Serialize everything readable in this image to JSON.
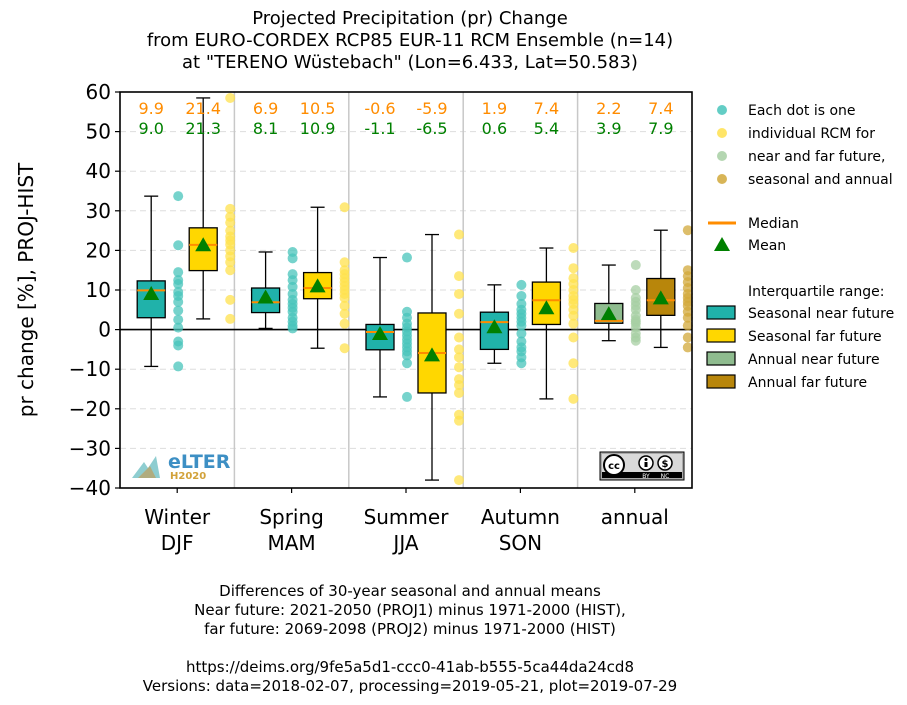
{
  "title": {
    "line1": "Projected Precipitation (pr) Change",
    "line2": "from EURO-CORDEX RCP85 EUR-11 RCM Ensemble (n=14)",
    "line3": "at \"TERENO Wüstebach\" (Lon=6.433, Lat=50.583)"
  },
  "caption": {
    "line1": "Differences of 30-year seasonal and annual means",
    "line2": "Near future: 2021-2050 (PROJ1) minus 1971-2000 (HIST),",
    "line3": "far future: 2069-2098 (PROJ2) minus 1971-2000 (HIST)",
    "line4": "https://deims.org/9fe5a5d1-ccc0-41ab-b555-5ca44da24cd8",
    "line5": "Versions: data=2018-02-07, processing=2019-05-21, plot=2019-07-29"
  },
  "logo": {
    "text": "eLTER",
    "subtext": "H2020"
  },
  "license_badge": {
    "text": [
      "cc",
      "BY",
      "NC"
    ]
  },
  "colors": {
    "seasonal_near": "#20b2aa",
    "seasonal_far": "#ffd700",
    "annual_near": "#8fbc8f",
    "annual_far": "#b8860b",
    "median": "#ff8c00",
    "mean": "#008000",
    "near_label": "#ff8c00",
    "far_label": "#008000",
    "dot_near": "#48c4bb",
    "dot_far": "#ffe14d",
    "dot_annual_near": "#a7cfa3",
    "dot_annual_far": "#d1a83a"
  },
  "chart_data": {
    "type": "box",
    "ylabel": "pr change [%], PROJ-HIST",
    "ylim": [
      -40,
      60
    ],
    "yticks": [
      -40,
      -30,
      -20,
      -10,
      0,
      10,
      20,
      30,
      40,
      50,
      60
    ],
    "ytick_labels": [
      "−40",
      "−30",
      "−20",
      "−10",
      "0",
      "10",
      "20",
      "30",
      "40",
      "50",
      "60"
    ],
    "grid": true,
    "categories": [
      {
        "line1": "Winter",
        "line2": "DJF"
      },
      {
        "line1": "Spring",
        "line2": "MAM"
      },
      {
        "line1": "Summer",
        "line2": "JJA"
      },
      {
        "line1": "Autumn",
        "line2": "SON"
      },
      {
        "line1": "annual",
        "line2": ""
      }
    ],
    "top_labels_row1": [
      "9.9",
      "21.4",
      "6.9",
      "10.5",
      "-0.6",
      "-5.9",
      "1.9",
      "7.4",
      "2.2",
      "7.4"
    ],
    "top_labels_row2": [
      "9.0",
      "21.3",
      "8.1",
      "10.9",
      "-1.1",
      "-6.5",
      "0.6",
      "5.4",
      "3.9",
      "7.9"
    ],
    "boxes": [
      {
        "category": 0,
        "period": "near",
        "kind": "seasonal",
        "whislo": -9.3,
        "q1": 3.0,
        "med": 9.9,
        "q3": 12.3,
        "whishi": 33.7,
        "mean": 9.0,
        "dots": [
          33.7,
          21.3,
          14.5,
          12.5,
          11.5,
          9.5,
          8.5,
          7.0,
          4.8,
          2.5,
          0.5,
          -3.0,
          -4.0,
          -9.3
        ]
      },
      {
        "category": 0,
        "period": "far",
        "kind": "seasonal",
        "whislo": 2.7,
        "q1": 14.9,
        "med": 21.4,
        "q3": 25.7,
        "whishi": 58.5,
        "mean": 21.3,
        "dots": [
          58.5,
          30.5,
          28.5,
          27.0,
          25.0,
          23.5,
          22.5,
          21.5,
          20.0,
          18.5,
          17.0,
          15.0,
          7.5,
          2.7
        ]
      },
      {
        "category": 1,
        "period": "near",
        "kind": "seasonal",
        "whislo": 0.3,
        "q1": 4.3,
        "med": 6.9,
        "q3": 10.5,
        "whishi": 19.6,
        "mean": 8.1,
        "dots": [
          19.6,
          18.0,
          14.0,
          12.5,
          10.8,
          9.0,
          7.5,
          6.5,
          5.5,
          4.5,
          3.0,
          2.0,
          1.0,
          0.3
        ]
      },
      {
        "category": 1,
        "period": "far",
        "kind": "seasonal",
        "whislo": -4.7,
        "q1": 7.8,
        "med": 10.5,
        "q3": 14.4,
        "whishi": 30.9,
        "mean": 10.9,
        "dots": [
          30.9,
          17.0,
          15.0,
          14.0,
          13.0,
          12.0,
          11.0,
          10.0,
          9.0,
          8.0,
          6.0,
          4.0,
          1.5,
          -4.7
        ]
      },
      {
        "category": 2,
        "period": "near",
        "kind": "seasonal",
        "whislo": -17.0,
        "q1": -5.1,
        "med": -0.6,
        "q3": 1.3,
        "whishi": 18.2,
        "mean": -1.1,
        "dots": [
          18.2,
          4.5,
          3.0,
          1.5,
          0.5,
          -0.5,
          -1.5,
          -2.5,
          -3.5,
          -4.5,
          -5.5,
          -6.5,
          -8.5,
          -17.0
        ]
      },
      {
        "category": 2,
        "period": "far",
        "kind": "seasonal",
        "whislo": -38.0,
        "q1": -16.0,
        "med": -5.9,
        "q3": 4.2,
        "whishi": 24.0,
        "mean": -6.5,
        "dots": [
          24.0,
          13.5,
          9.0,
          4.0,
          -2.0,
          -5.0,
          -7.0,
          -9.5,
          -12.5,
          -14.0,
          -16.0,
          -21.5,
          -23.0,
          -38.0
        ]
      },
      {
        "category": 3,
        "period": "near",
        "kind": "seasonal",
        "whislo": -8.5,
        "q1": -5.0,
        "med": 1.9,
        "q3": 4.4,
        "whishi": 11.3,
        "mean": 0.6,
        "dots": [
          11.3,
          8.5,
          6.5,
          5.0,
          4.0,
          3.0,
          2.0,
          1.0,
          -1.0,
          -3.0,
          -4.5,
          -5.5,
          -7.0,
          -8.5
        ]
      },
      {
        "category": 3,
        "period": "far",
        "kind": "seasonal",
        "whislo": -17.5,
        "q1": 1.3,
        "med": 7.4,
        "q3": 12.0,
        "whishi": 20.6,
        "mean": 5.4,
        "dots": [
          20.6,
          15.5,
          13.0,
          11.5,
          10.0,
          8.5,
          7.5,
          6.5,
          5.0,
          3.5,
          1.5,
          -2.0,
          -8.5,
          -17.5
        ]
      },
      {
        "category": 4,
        "period": "near",
        "kind": "annual",
        "whislo": -2.8,
        "q1": 1.6,
        "med": 2.2,
        "q3": 6.6,
        "whishi": 16.3,
        "mean": 3.9,
        "dots": [
          16.3,
          10.0,
          8.0,
          7.0,
          6.0,
          5.0,
          3.5,
          2.5,
          2.0,
          1.5,
          0.5,
          -1.0,
          -2.0,
          -2.8
        ]
      },
      {
        "category": 4,
        "period": "far",
        "kind": "annual",
        "whislo": -4.5,
        "q1": 3.6,
        "med": 7.4,
        "q3": 12.9,
        "whishi": 25.1,
        "mean": 7.9,
        "dots": [
          25.1,
          15.0,
          13.5,
          12.0,
          10.5,
          9.0,
          8.0,
          7.0,
          6.0,
          4.5,
          3.0,
          1.0,
          -2.0,
          -4.5
        ]
      }
    ],
    "legend": {
      "placement": "right",
      "dots_text": [
        "Each dot is one",
        "individual RCM for",
        "near and far future,",
        "seasonal and annual"
      ],
      "median_label": "Median",
      "mean_label": "Mean",
      "iqr_title": "Interquartile range:",
      "entries": [
        {
          "label": "Seasonal near future",
          "key": "seasonal_near"
        },
        {
          "label": "Seasonal far future",
          "key": "seasonal_far"
        },
        {
          "label": "Annual near future",
          "key": "annual_near"
        },
        {
          "label": "Annual far future",
          "key": "annual_far"
        }
      ]
    }
  }
}
